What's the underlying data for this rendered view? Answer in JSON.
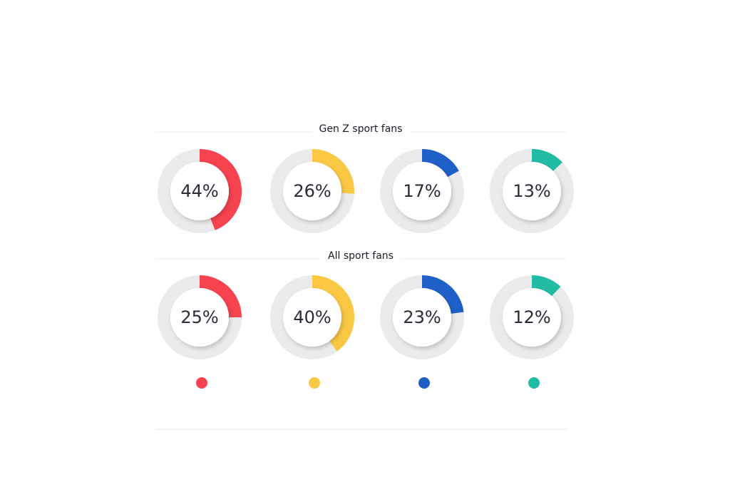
{
  "chart_data": [
    {
      "type": "donut",
      "title": "Gen Z sport fans",
      "values": [
        44,
        26,
        17,
        13
      ],
      "value_labels": [
        "44%",
        "26%",
        "17%",
        "13%"
      ],
      "colors": [
        "#f74350",
        "#fbc844",
        "#1f5fc8",
        "#22bca4"
      ]
    },
    {
      "type": "donut",
      "title": "All sport fans",
      "values": [
        25,
        40,
        23,
        12
      ],
      "value_labels": [
        "25%",
        "40%",
        "23%",
        "12%"
      ],
      "colors": [
        "#f74350",
        "#fbc844",
        "#1f5fc8",
        "#22bca4"
      ]
    }
  ]
}
